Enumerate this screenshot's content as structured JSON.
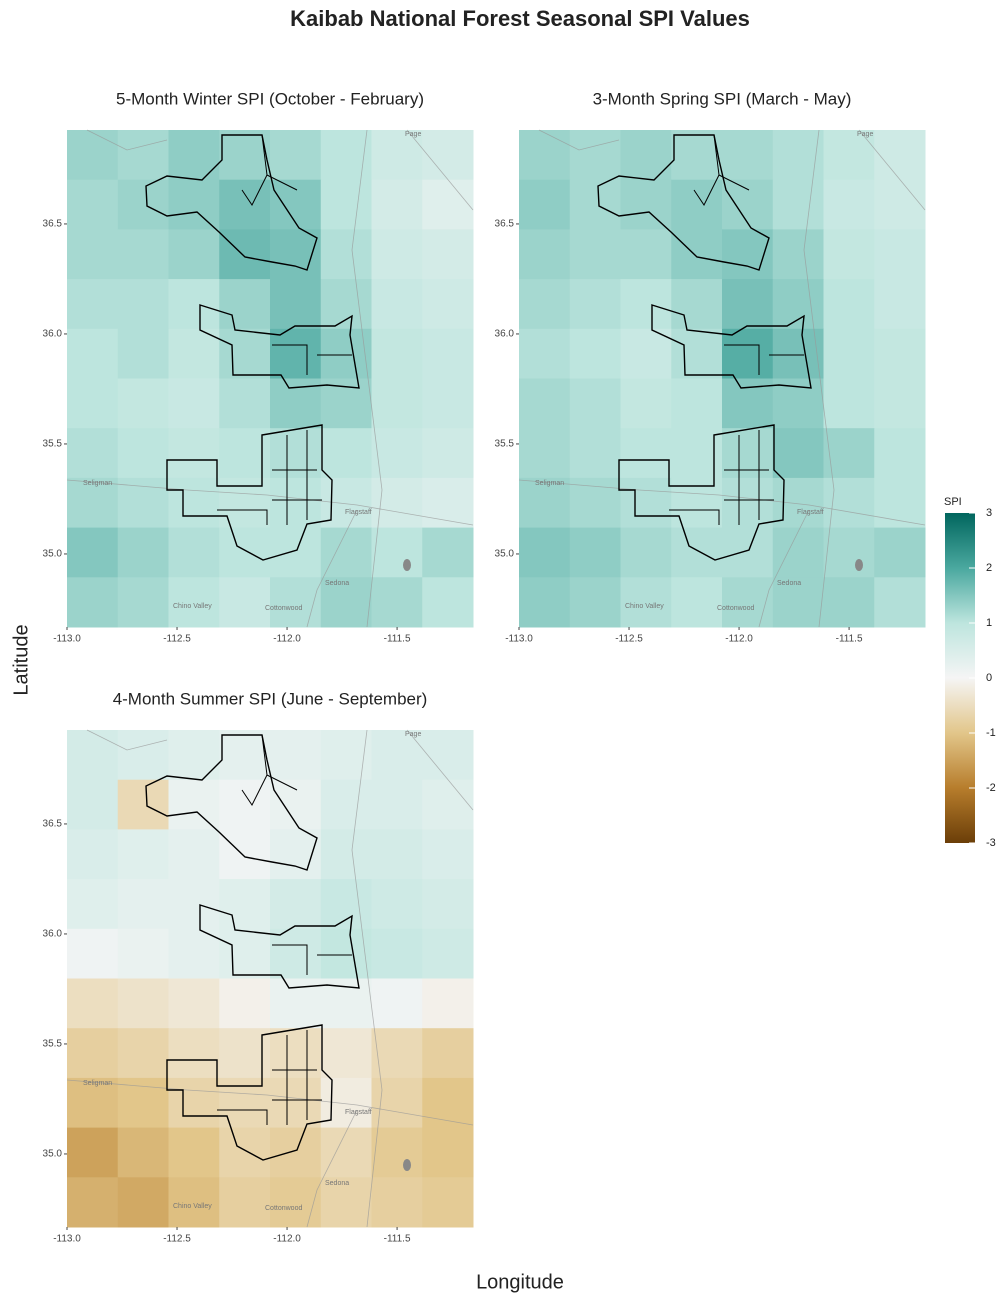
{
  "chart_data": {
    "type": "heatmap",
    "title": "Kaibab National Forest Seasonal SPI Values",
    "x_label": "Longitude",
    "y_label": "Latitude",
    "xlim": [
      -113.0,
      -111.155
    ],
    "ylim": [
      34.668,
      36.927
    ],
    "xticks": [
      {
        "value": -113,
        "label": "-113.0"
      },
      -112.5,
      {
        "value": -112,
        "label": "-112.0"
      },
      -111.5
    ],
    "yticks": [
      {
        "value": 35,
        "label": "35.0"
      },
      35.5,
      {
        "value": 36,
        "label": "36.0"
      },
      36.5
    ],
    "places": [
      "Page",
      "Seligman",
      "Flagstaff",
      "Sedona",
      "Chino Valley",
      "Cottonwood"
    ],
    "panels": [
      {
        "title": "5-Month Winter SPI (October - February)",
        "grid": [
          [
            1.3,
            1.2,
            1.4,
            1.3,
            1.2,
            1.0,
            0.7,
            0.6
          ],
          [
            1.2,
            1.3,
            1.4,
            1.6,
            1.5,
            1.0,
            0.6,
            0.4
          ],
          [
            1.2,
            1.2,
            1.3,
            1.7,
            1.6,
            1.1,
            0.7,
            0.6
          ],
          [
            1.1,
            1.1,
            1.0,
            1.3,
            1.6,
            1.2,
            0.8,
            0.7
          ],
          [
            1.0,
            1.1,
            0.9,
            1.2,
            1.8,
            1.4,
            0.9,
            0.8
          ],
          [
            1.0,
            0.9,
            0.8,
            1.1,
            1.4,
            1.3,
            0.9,
            0.8
          ],
          [
            1.1,
            1.0,
            0.9,
            1.0,
            1.1,
            1.0,
            0.8,
            0.7
          ],
          [
            1.2,
            1.1,
            1.0,
            0.9,
            1.0,
            0.8,
            0.6,
            0.5
          ],
          [
            1.5,
            1.3,
            1.1,
            1.0,
            1.0,
            1.2,
            1.0,
            1.2
          ],
          [
            1.3,
            1.2,
            1.0,
            0.8,
            1.1,
            1.3,
            1.2,
            1.0
          ]
        ]
      },
      {
        "title": "3-Month Spring SPI (March - May)",
        "grid": [
          [
            1.3,
            1.2,
            1.3,
            1.2,
            1.2,
            1.1,
            0.9,
            0.7
          ],
          [
            1.4,
            1.2,
            1.3,
            1.4,
            1.3,
            1.1,
            0.8,
            0.7
          ],
          [
            1.3,
            1.2,
            1.2,
            1.4,
            1.5,
            1.3,
            0.9,
            0.8
          ],
          [
            1.2,
            1.1,
            1.0,
            1.2,
            1.6,
            1.4,
            1.0,
            0.8
          ],
          [
            1.1,
            1.0,
            0.8,
            1.1,
            1.9,
            1.6,
            1.0,
            0.9
          ],
          [
            1.2,
            1.1,
            0.9,
            1.0,
            1.5,
            1.4,
            1.0,
            0.9
          ],
          [
            1.2,
            1.1,
            1.0,
            1.0,
            1.2,
            1.5,
            1.3,
            1.0
          ],
          [
            1.3,
            1.2,
            1.1,
            1.0,
            1.1,
            1.2,
            1.1,
            1.0
          ],
          [
            1.5,
            1.4,
            1.2,
            1.1,
            1.1,
            1.3,
            1.2,
            1.3
          ],
          [
            1.4,
            1.3,
            1.1,
            1.0,
            1.2,
            1.3,
            1.3,
            1.1
          ]
        ]
      },
      {
        "title": "4-Month Summer SPI (June - September)",
        "grid": [
          [
            0.6,
            0.5,
            0.4,
            0.3,
            0.3,
            0.4,
            0.5,
            0.5
          ],
          [
            0.6,
            -0.6,
            0.2,
            0.1,
            0.2,
            0.5,
            0.5,
            0.4
          ],
          [
            0.5,
            0.4,
            0.3,
            0.1,
            0.3,
            0.6,
            0.6,
            0.5
          ],
          [
            0.4,
            0.3,
            0.3,
            0.4,
            0.6,
            0.8,
            0.7,
            0.6
          ],
          [
            0.1,
            0.2,
            0.3,
            0.4,
            0.7,
            0.9,
            0.8,
            0.7
          ],
          [
            -0.5,
            -0.4,
            -0.3,
            -0.1,
            0.2,
            0.2,
            0.1,
            -0.1
          ],
          [
            -0.8,
            -0.7,
            -0.5,
            -0.4,
            -0.5,
            -0.3,
            -0.6,
            -0.8
          ],
          [
            -1.1,
            -1.0,
            -0.7,
            -0.6,
            -0.6,
            -0.2,
            -0.7,
            -1.0
          ],
          [
            -1.5,
            -1.2,
            -1.0,
            -0.7,
            -0.8,
            -0.6,
            -0.9,
            -1.0
          ],
          [
            -1.3,
            -1.4,
            -1.1,
            -0.8,
            -0.9,
            -0.7,
            -0.8,
            -0.9
          ]
        ]
      }
    ],
    "colorbar": {
      "title": "SPI",
      "lim": [
        -3,
        3
      ],
      "ticks": [
        3,
        2,
        1,
        0,
        -1,
        -2,
        -3
      ],
      "colors": [
        "#01665e",
        "#4aa89f",
        "#bde5de",
        "#f5f5f5",
        "#e2c68a",
        "#b77d2c",
        "#6b3e08"
      ]
    }
  }
}
